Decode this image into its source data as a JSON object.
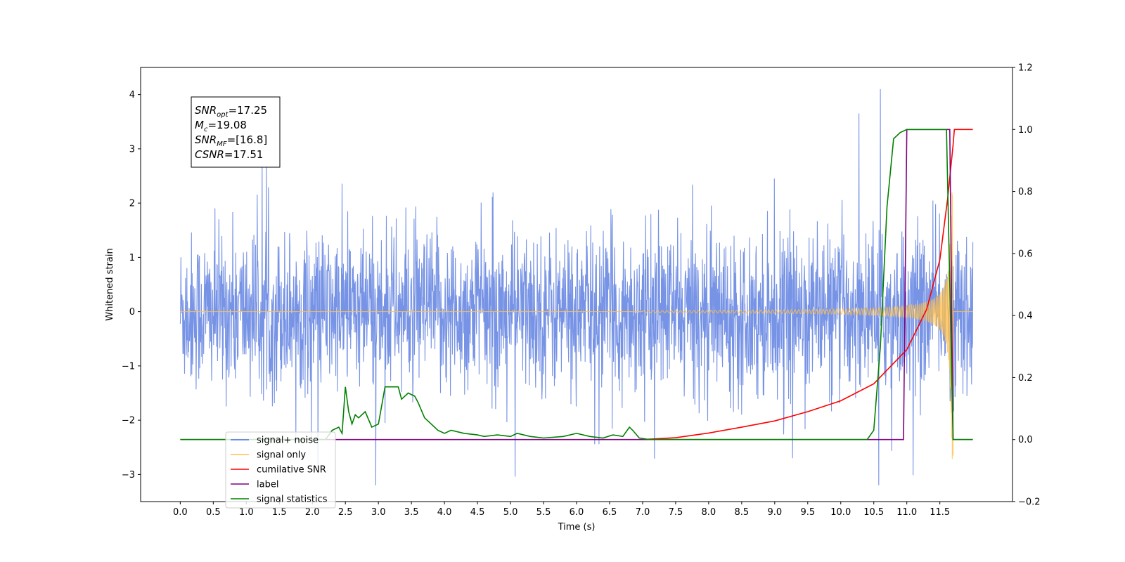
{
  "chart_data": {
    "type": "line",
    "title": "",
    "xlabel": "Time (s)",
    "ylabel": "Whitened strain",
    "y2label": "",
    "xlim": [
      -0.6,
      12.6
    ],
    "ylim": [
      -3.5,
      4.5
    ],
    "y2lim": [
      -0.2,
      1.2
    ],
    "x_ticks": [
      0.0,
      0.5,
      1.0,
      1.5,
      2.0,
      2.5,
      3.0,
      3.5,
      4.0,
      4.5,
      5.0,
      5.5,
      6.0,
      6.5,
      7.0,
      7.5,
      8.0,
      8.5,
      9.0,
      9.5,
      10.0,
      10.5,
      11.0,
      11.5
    ],
    "x_tick_labels": [
      "0.0",
      "0.5",
      "1.0",
      "1.5",
      "2.0",
      "2.5",
      "3.0",
      "3.5",
      "4.0",
      "4.5",
      "5.0",
      "5.5",
      "6.0",
      "6.5",
      "7.0",
      "7.5",
      "8.0",
      "8.5",
      "9.0",
      "9.5",
      "10.0",
      "10.5",
      "11.0",
      "11.5"
    ],
    "y_ticks": [
      -3,
      -2,
      -1,
      0,
      1,
      2,
      3,
      4
    ],
    "y_tick_labels": [
      "−3",
      "−2",
      "−1",
      "0",
      "1",
      "2",
      "3",
      "4"
    ],
    "y2_ticks": [
      -0.2,
      0.0,
      0.2,
      0.4,
      0.6,
      0.8,
      1.0,
      1.2
    ],
    "y2_tick_labels": [
      "−0.2",
      "0.0",
      "0.2",
      "0.4",
      "0.6",
      "0.8",
      "1.0",
      "1.2"
    ],
    "grid": false,
    "legend_position": "lower-left",
    "annotation": {
      "lines": [
        {
          "sym": "SNR",
          "sub": "opt",
          "value": "=17.25"
        },
        {
          "sym": "M",
          "sub": "c",
          "value": "=19.08"
        },
        {
          "sym": "SNR",
          "sub": "MF",
          "value": "=[16.8]"
        },
        {
          "sym": "CSNR",
          "sub": "",
          "value": "=17.51"
        }
      ]
    },
    "series": [
      {
        "name": "signal+ noise",
        "axis": "left",
        "color": "#4a6fdc",
        "noise_amplitude": 2.5,
        "noise_spike_max": 4.1,
        "noise_spike_min": -3.2
      },
      {
        "name": "signal only",
        "axis": "left",
        "color": "#ffc04d",
        "chirp_start": 7.0,
        "chirp_end": 11.7,
        "peak_amplitude": 2.8
      },
      {
        "name": "cumilative SNR",
        "axis": "right",
        "color": "#ff0000",
        "points": [
          [
            7.0,
            0.0
          ],
          [
            7.5,
            0.006
          ],
          [
            8.0,
            0.021
          ],
          [
            8.5,
            0.04
          ],
          [
            9.0,
            0.06
          ],
          [
            9.5,
            0.09
          ],
          [
            10.0,
            0.125
          ],
          [
            10.5,
            0.18
          ],
          [
            11.0,
            0.29
          ],
          [
            11.3,
            0.42
          ],
          [
            11.5,
            0.58
          ],
          [
            11.62,
            0.78
          ],
          [
            11.7,
            0.95
          ],
          [
            11.72,
            1.0
          ],
          [
            12.0,
            1.0
          ]
        ]
      },
      {
        "name": "label",
        "axis": "right",
        "color": "#800080",
        "points": [
          [
            0.0,
            0.0
          ],
          [
            10.95,
            0.0
          ],
          [
            11.0,
            1.0
          ],
          [
            11.65,
            1.0
          ],
          [
            11.7,
            0.0
          ],
          [
            12.0,
            0.0
          ]
        ]
      },
      {
        "name": "signal statistics",
        "axis": "right",
        "color": "#008000",
        "points": [
          [
            0.0,
            0.0
          ],
          [
            2.2,
            0.0
          ],
          [
            2.3,
            0.03
          ],
          [
            2.4,
            0.04
          ],
          [
            2.45,
            0.02
          ],
          [
            2.5,
            0.17
          ],
          [
            2.55,
            0.09
          ],
          [
            2.6,
            0.05
          ],
          [
            2.65,
            0.08
          ],
          [
            2.7,
            0.07
          ],
          [
            2.8,
            0.09
          ],
          [
            2.9,
            0.04
          ],
          [
            3.0,
            0.05
          ],
          [
            3.1,
            0.17
          ],
          [
            3.2,
            0.17
          ],
          [
            3.3,
            0.17
          ],
          [
            3.35,
            0.13
          ],
          [
            3.45,
            0.15
          ],
          [
            3.55,
            0.14
          ],
          [
            3.6,
            0.12
          ],
          [
            3.7,
            0.07
          ],
          [
            3.8,
            0.05
          ],
          [
            3.9,
            0.03
          ],
          [
            4.0,
            0.02
          ],
          [
            4.1,
            0.03
          ],
          [
            4.3,
            0.02
          ],
          [
            4.5,
            0.015
          ],
          [
            4.6,
            0.01
          ],
          [
            4.8,
            0.015
          ],
          [
            5.0,
            0.01
          ],
          [
            5.1,
            0.02
          ],
          [
            5.3,
            0.01
          ],
          [
            5.5,
            0.005
          ],
          [
            5.8,
            0.01
          ],
          [
            6.0,
            0.02
          ],
          [
            6.2,
            0.01
          ],
          [
            6.4,
            0.005
          ],
          [
            6.55,
            0.015
          ],
          [
            6.7,
            0.01
          ],
          [
            6.8,
            0.04
          ],
          [
            6.85,
            0.03
          ],
          [
            6.95,
            0.005
          ],
          [
            7.1,
            0.0
          ],
          [
            10.4,
            0.0
          ],
          [
            10.5,
            0.03
          ],
          [
            10.6,
            0.3
          ],
          [
            10.7,
            0.75
          ],
          [
            10.8,
            0.97
          ],
          [
            10.9,
            0.99
          ],
          [
            11.0,
            1.0
          ],
          [
            11.6,
            1.0
          ],
          [
            11.7,
            0.0
          ],
          [
            12.0,
            0.0
          ]
        ]
      }
    ]
  }
}
